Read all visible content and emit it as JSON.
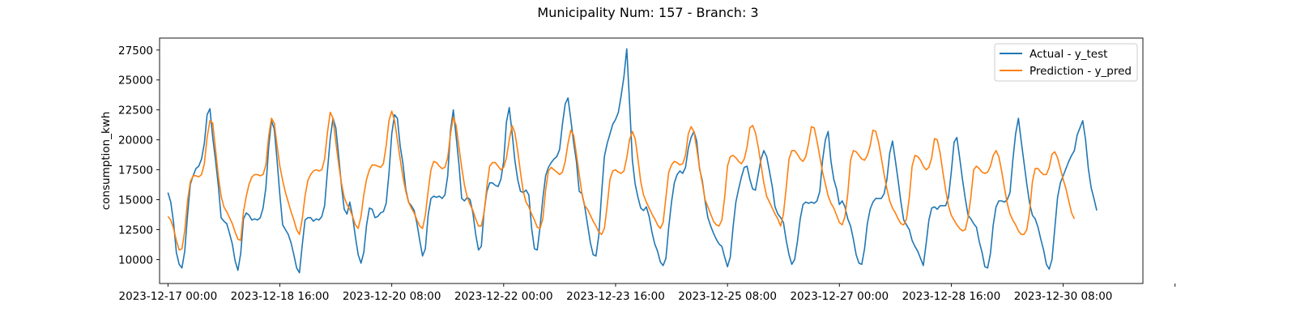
{
  "chart_data": {
    "type": "line",
    "title": "Municipality Num: 157 - Branch: 3",
    "xlabel": "",
    "ylabel": "consumption_kwh",
    "x_start": "2023-12-17 00:00",
    "x_step_hours": 1,
    "xlim_hours": [
      -3,
      348.5
    ],
    "ylim": [
      8000,
      28500
    ],
    "yticks": [
      10000,
      12500,
      15000,
      17500,
      20000,
      22500,
      25000,
      27500
    ],
    "ytick_labels": [
      "10000",
      "12500",
      "15000",
      "17500",
      "20000",
      "22500",
      "25000",
      "27500"
    ],
    "xticks_hours": [
      0,
      40,
      80,
      120,
      160,
      200,
      240,
      280,
      320,
      360
    ],
    "xtick_labels": [
      "2023-12-17 00:00",
      "2023-12-18 16:00",
      "2023-12-20 08:00",
      "2023-12-22 00:00",
      "2023-12-23 16:00",
      "2023-12-25 08:00",
      "2023-12-27 00:00",
      "2023-12-28 16:00",
      "2023-12-30 08:00",
      ""
    ],
    "legend_position": "upper right",
    "grid": false,
    "series": [
      {
        "name": "Actual - y_test",
        "color": "#1f77b4",
        "values": [
          15600,
          14800,
          13100,
          10600,
          9600,
          9300,
          10700,
          13700,
          16300,
          17000,
          17600,
          17800,
          18400,
          19700,
          22100,
          22600,
          20200,
          18300,
          16200,
          13500,
          13200,
          13000,
          12200,
          11300,
          9900,
          9100,
          10500,
          13400,
          13900,
          13700,
          13300,
          13400,
          13300,
          13500,
          14300,
          16000,
          19400,
          21600,
          20900,
          18300,
          15400,
          12900,
          12500,
          12100,
          11400,
          10400,
          9300,
          8900,
          11200,
          13300,
          13500,
          13500,
          13200,
          13400,
          13300,
          13600,
          14500,
          17400,
          20100,
          21800,
          21000,
          18700,
          16200,
          14200,
          13800,
          14800,
          13600,
          11900,
          10400,
          9700,
          10600,
          12900,
          14300,
          14200,
          13500,
          13600,
          13900,
          14000,
          14700,
          17200,
          20500,
          22100,
          21800,
          19500,
          18000,
          15900,
          14800,
          14500,
          14100,
          13000,
          11600,
          10300,
          10900,
          13700,
          15100,
          15300,
          15200,
          15300,
          15100,
          15400,
          17000,
          20800,
          22500,
          20300,
          18000,
          15100,
          14900,
          15200,
          15000,
          13900,
          12100,
          10800,
          11100,
          14000,
          15700,
          16400,
          16400,
          16200,
          16100,
          16700,
          18200,
          21500,
          22700,
          20600,
          18300,
          16700,
          15700,
          15600,
          15800,
          15400,
          12600,
          10900,
          10800,
          12700,
          15100,
          17000,
          17700,
          18100,
          18400,
          18600,
          19200,
          21300,
          23000,
          23500,
          21700,
          19800,
          18200,
          15700,
          15500,
          14400,
          12900,
          11400,
          10400,
          10300,
          12000,
          15500,
          18600,
          19700,
          20500,
          21300,
          21700,
          22300,
          23700,
          25300,
          27600,
          23100,
          18300,
          16300,
          15200,
          14300,
          14100,
          14400,
          13600,
          12300,
          11300,
          10700,
          9800,
          9500,
          10100,
          12700,
          14800,
          16400,
          17100,
          17400,
          17200,
          17700,
          19300,
          20200,
          20700,
          19900,
          17600,
          16600,
          14900,
          13500,
          12800,
          12200,
          11700,
          11300,
          11100,
          10200,
          9400,
          10200,
          12700,
          14800,
          15900,
          16900,
          17700,
          17800,
          16700,
          15900,
          15800,
          17100,
          18400,
          19100,
          18600,
          17400,
          16100,
          14400,
          13800,
          13500,
          13100,
          11600,
          10400,
          9600,
          10000,
          11500,
          13400,
          14600,
          14800,
          14700,
          14800,
          14700,
          14900,
          15700,
          18300,
          20000,
          20700,
          18200,
          16700,
          15900,
          14600,
          14900,
          14400,
          13400,
          12800,
          11700,
          10400,
          9700,
          9600,
          10900,
          13000,
          14200,
          14800,
          15100,
          15100,
          15100,
          15500,
          16700,
          18900,
          19900,
          18300,
          16600,
          14800,
          13300,
          12900,
          12500,
          11600,
          11100,
          10700,
          10100,
          9500,
          11300,
          13300,
          14300,
          14400,
          14200,
          14500,
          14500,
          14500,
          15200,
          17300,
          19800,
          20200,
          18500,
          16700,
          15100,
          13700,
          13400,
          13000,
          12700,
          11500,
          10600,
          9400,
          9300,
          10500,
          12900,
          14400,
          14900,
          14900,
          14800,
          15000,
          15600,
          18300,
          20500,
          21800,
          19900,
          18100,
          16300,
          14700,
          13700,
          13400,
          12700,
          11700,
          10800,
          9600,
          9200,
          10000,
          12600,
          15200,
          16400,
          17000,
          17600,
          18200,
          18700,
          19100,
          20400,
          21000,
          21600,
          20000,
          17600,
          16000,
          15100,
          14100
        ]
      },
      {
        "name": "Prediction - y_pred",
        "color": "#ff7f0e",
        "values": [
          13600,
          13300,
          12600,
          11600,
          10800,
          10900,
          12400,
          14900,
          16500,
          17000,
          17000,
          16900,
          17100,
          18000,
          20200,
          21600,
          21400,
          19200,
          17000,
          15300,
          14400,
          14000,
          13500,
          13000,
          12300,
          11700,
          11600,
          14000,
          15300,
          16300,
          16900,
          17100,
          17100,
          17000,
          17100,
          17900,
          20300,
          21800,
          21400,
          19500,
          17800,
          16600,
          15600,
          14800,
          14000,
          13300,
          12500,
          12100,
          13400,
          15300,
          16600,
          17100,
          17400,
          17500,
          17400,
          17500,
          18400,
          20600,
          22300,
          21800,
          19800,
          18000,
          16400,
          15200,
          14600,
          14200,
          13600,
          12900,
          12600,
          13600,
          15400,
          16700,
          17500,
          17900,
          17900,
          17800,
          17700,
          18000,
          19500,
          21600,
          22400,
          21600,
          20000,
          18400,
          16900,
          15700,
          14800,
          14300,
          13900,
          13300,
          12800,
          12600,
          13700,
          15700,
          17500,
          18200,
          18100,
          17800,
          17600,
          17700,
          18500,
          20500,
          21900,
          21200,
          19400,
          17700,
          16200,
          15200,
          14600,
          14100,
          13400,
          12800,
          12800,
          13900,
          16100,
          17800,
          18100,
          18100,
          17800,
          17500,
          17700,
          18500,
          20000,
          21200,
          20600,
          19100,
          17300,
          15700,
          14800,
          14400,
          13800,
          13300,
          12700,
          12600,
          13400,
          15800,
          17400,
          17700,
          17500,
          17300,
          17100,
          17300,
          18200,
          19700,
          20800,
          20400,
          18800,
          17100,
          15500,
          14500,
          14200,
          13700,
          13200,
          12800,
          12300,
          12100,
          12600,
          14500,
          16700,
          17400,
          17500,
          17300,
          17200,
          17400,
          18500,
          20000,
          20700,
          20100,
          18400,
          16500,
          15400,
          14800,
          14300,
          13800,
          13400,
          12900,
          12600,
          13100,
          15200,
          17300,
          17900,
          18200,
          18100,
          17900,
          18000,
          18700,
          20500,
          21100,
          20700,
          19300,
          17700,
          16400,
          15000,
          14400,
          13800,
          13200,
          12900,
          12800,
          13300,
          15200,
          17800,
          18600,
          18700,
          18500,
          18200,
          18000,
          18400,
          19400,
          21000,
          21200,
          20600,
          19400,
          17900,
          16400,
          15300,
          14800,
          14300,
          13800,
          13400,
          12800,
          13800,
          16000,
          18400,
          19100,
          19100,
          18800,
          18400,
          18200,
          18600,
          19700,
          21100,
          21000,
          19900,
          18600,
          17300,
          16300,
          15300,
          14700,
          14300,
          13700,
          13100,
          12900,
          13600,
          15500,
          18300,
          19100,
          19000,
          18700,
          18400,
          18300,
          18700,
          19500,
          20800,
          20700,
          19800,
          18500,
          17100,
          15900,
          14900,
          14300,
          13900,
          13400,
          13000,
          12900,
          13400,
          15200,
          17800,
          18700,
          18600,
          18300,
          17800,
          17500,
          17700,
          18500,
          20100,
          20000,
          18900,
          17300,
          15800,
          14500,
          13700,
          13300,
          12900,
          12600,
          12400,
          12500,
          13500,
          15200,
          17500,
          17800,
          17600,
          17300,
          17200,
          17300,
          17800,
          18700,
          19100,
          18600,
          17400,
          16000,
          14700,
          13800,
          13300,
          12900,
          12400,
          12100,
          12100,
          12500,
          14000,
          16500,
          17600,
          17600,
          17300,
          17100,
          17100,
          17700,
          18800,
          19000,
          18500,
          17600,
          16700,
          15900,
          14900,
          13900,
          13400
        ]
      }
    ]
  }
}
